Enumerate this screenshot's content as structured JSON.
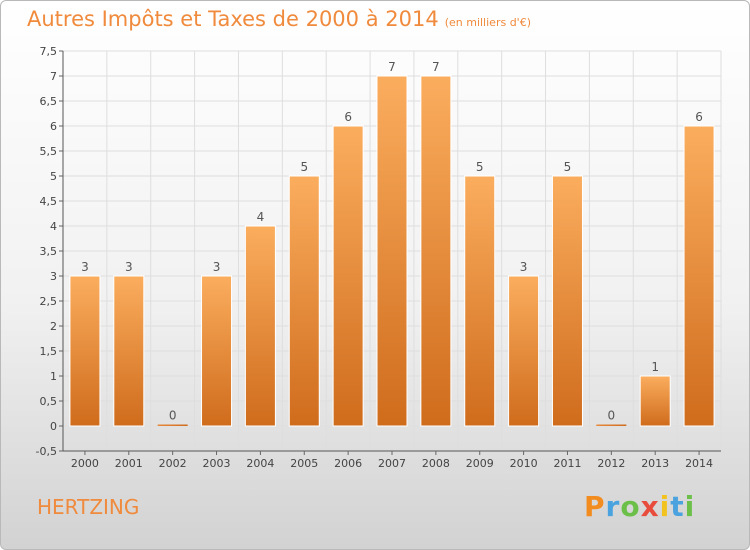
{
  "header": {
    "title": "Autres Impôts et Taxes de 2000 à 2014",
    "unit": "(en milliers d'€)"
  },
  "footer": {
    "commune": "HERTZING",
    "brand": "Proxiti"
  },
  "colors": {
    "title": "#f08a3c",
    "bar_top": "#fbad5e",
    "bar_bottom": "#cf6c1c",
    "grid": "#dedede"
  },
  "chart_data": {
    "type": "bar",
    "title": "Autres Impôts et Taxes de 2000 à 2014",
    "xlabel": "",
    "ylabel": "",
    "categories": [
      "2000",
      "2001",
      "2002",
      "2003",
      "2004",
      "2005",
      "2006",
      "2007",
      "2008",
      "2009",
      "2010",
      "2011",
      "2012",
      "2013",
      "2014"
    ],
    "values": [
      3,
      3,
      0,
      3,
      4,
      5,
      6,
      7,
      7,
      5,
      3,
      5,
      0,
      1,
      6
    ],
    "ylim": [
      -0.5,
      7.5
    ],
    "yticks": [
      "-0,5",
      "0",
      "0,5",
      "1",
      "1,5",
      "2",
      "2,5",
      "3",
      "3,5",
      "4",
      "4,5",
      "5",
      "5,5",
      "6",
      "6,5",
      "7",
      "7,5"
    ],
    "grid": true
  }
}
